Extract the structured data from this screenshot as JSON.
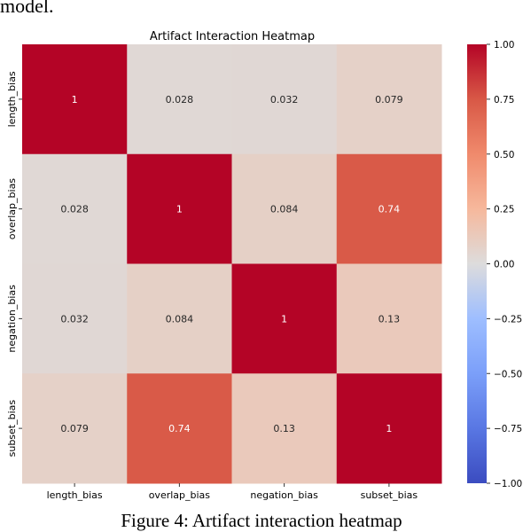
{
  "page": {
    "paragraph_tail": "model.",
    "figure_caption": "Figure 4: Artifact interaction heatmap"
  },
  "chart_data": {
    "type": "heatmap",
    "title": "Artifact Interaction Heatmap",
    "row_labels": [
      "length_bias",
      "overlap_bias",
      "negation_bias",
      "subset_bias"
    ],
    "col_labels": [
      "length_bias",
      "overlap_bias",
      "negation_bias",
      "subset_bias"
    ],
    "values": [
      [
        1,
        0.028,
        0.032,
        0.079
      ],
      [
        0.028,
        1,
        0.084,
        0.74
      ],
      [
        0.032,
        0.084,
        1,
        0.13
      ],
      [
        0.079,
        0.74,
        0.13,
        1
      ]
    ],
    "value_labels": [
      [
        "1",
        "0.028",
        "0.032",
        "0.079"
      ],
      [
        "0.028",
        "1",
        "0.084",
        "0.74"
      ],
      [
        "0.032",
        "0.084",
        "1",
        "0.13"
      ],
      [
        "0.079",
        "0.74",
        "0.13",
        "1"
      ]
    ],
    "vmin": -1.0,
    "vmax": 1.0,
    "colormap": "coolwarm",
    "colorbar_ticks": [
      "1.00",
      "0.75",
      "0.50",
      "0.25",
      "0.00",
      "−0.25",
      "−0.50",
      "−0.75",
      "−1.00"
    ],
    "colorbar_tick_values": [
      1.0,
      0.75,
      0.5,
      0.25,
      0.0,
      -0.25,
      -0.5,
      -0.75,
      -1.0
    ]
  }
}
